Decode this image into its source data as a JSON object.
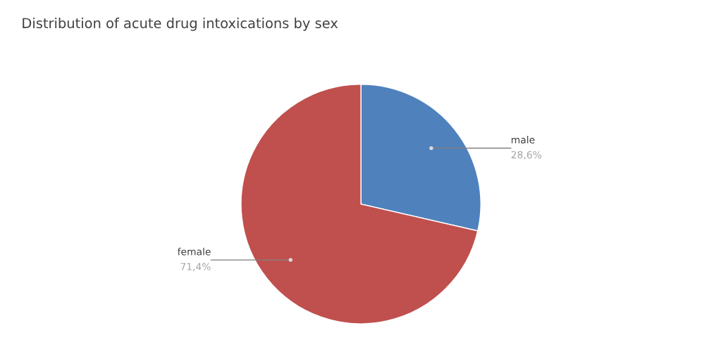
{
  "chart_data": {
    "type": "pie",
    "title": "Distribution of acute drug intoxications by sex",
    "categories": [
      "male",
      "female"
    ],
    "values": [
      28.6,
      71.4
    ],
    "value_labels": [
      "28,6%",
      "71,4%"
    ],
    "colors": [
      "#4f81bd",
      "#c0504d"
    ],
    "legend": false
  }
}
